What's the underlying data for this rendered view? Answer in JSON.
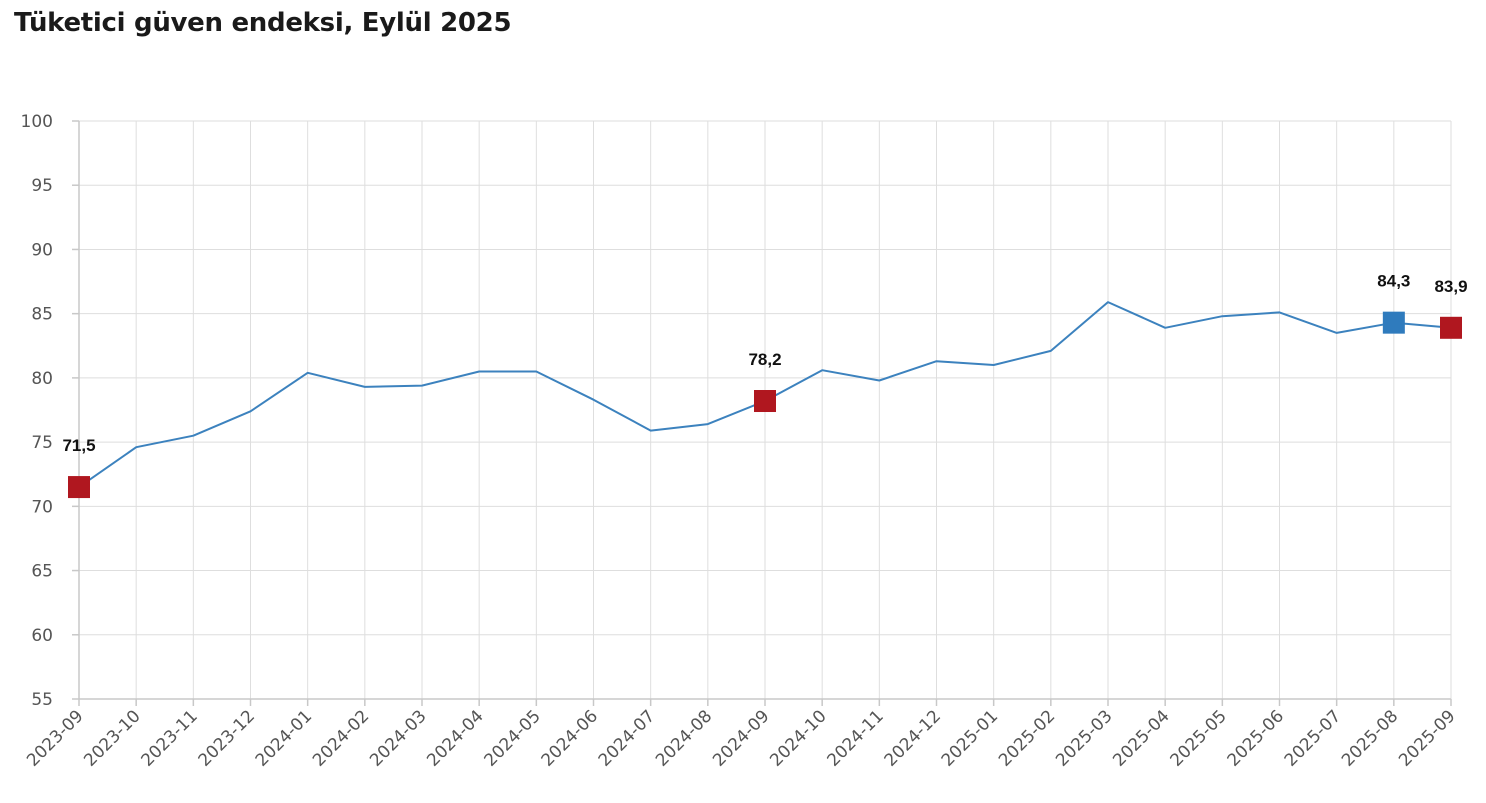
{
  "chart_data": {
    "type": "line",
    "title": "Tüketici güven endeksi, Eylül 2025",
    "xlabel": "",
    "ylabel": "",
    "x": [
      "2023-09",
      "2023-10",
      "2023-11",
      "2023-12",
      "2024-01",
      "2024-02",
      "2024-03",
      "2024-04",
      "2024-05",
      "2024-06",
      "2024-07",
      "2024-08",
      "2024-09",
      "2024-10",
      "2024-11",
      "2024-12",
      "2025-01",
      "2025-02",
      "2025-03",
      "2025-04",
      "2025-05",
      "2025-06",
      "2025-07",
      "2025-08",
      "2025-09"
    ],
    "series": [
      {
        "values": [
          71.5,
          74.6,
          75.5,
          77.4,
          80.4,
          79.3,
          79.4,
          80.5,
          80.5,
          78.3,
          75.9,
          76.4,
          78.2,
          80.6,
          79.8,
          81.3,
          81.0,
          82.1,
          85.9,
          83.9,
          84.8,
          85.1,
          83.5,
          84.3,
          83.9
        ],
        "color": "#3c82be"
      }
    ],
    "ylim": [
      55,
      100
    ],
    "yticks": [
      55,
      60,
      65,
      70,
      75,
      80,
      85,
      90,
      95,
      100
    ],
    "grid": true,
    "legend": "none",
    "highlights": [
      {
        "index": 0,
        "label": "71,5",
        "color": "#b0171f"
      },
      {
        "index": 12,
        "label": "78,2",
        "color": "#b0171f"
      },
      {
        "index": 23,
        "label": "84,3",
        "color": "#2f7bbd"
      },
      {
        "index": 24,
        "label": "83,9",
        "color": "#b0171f"
      }
    ]
  }
}
